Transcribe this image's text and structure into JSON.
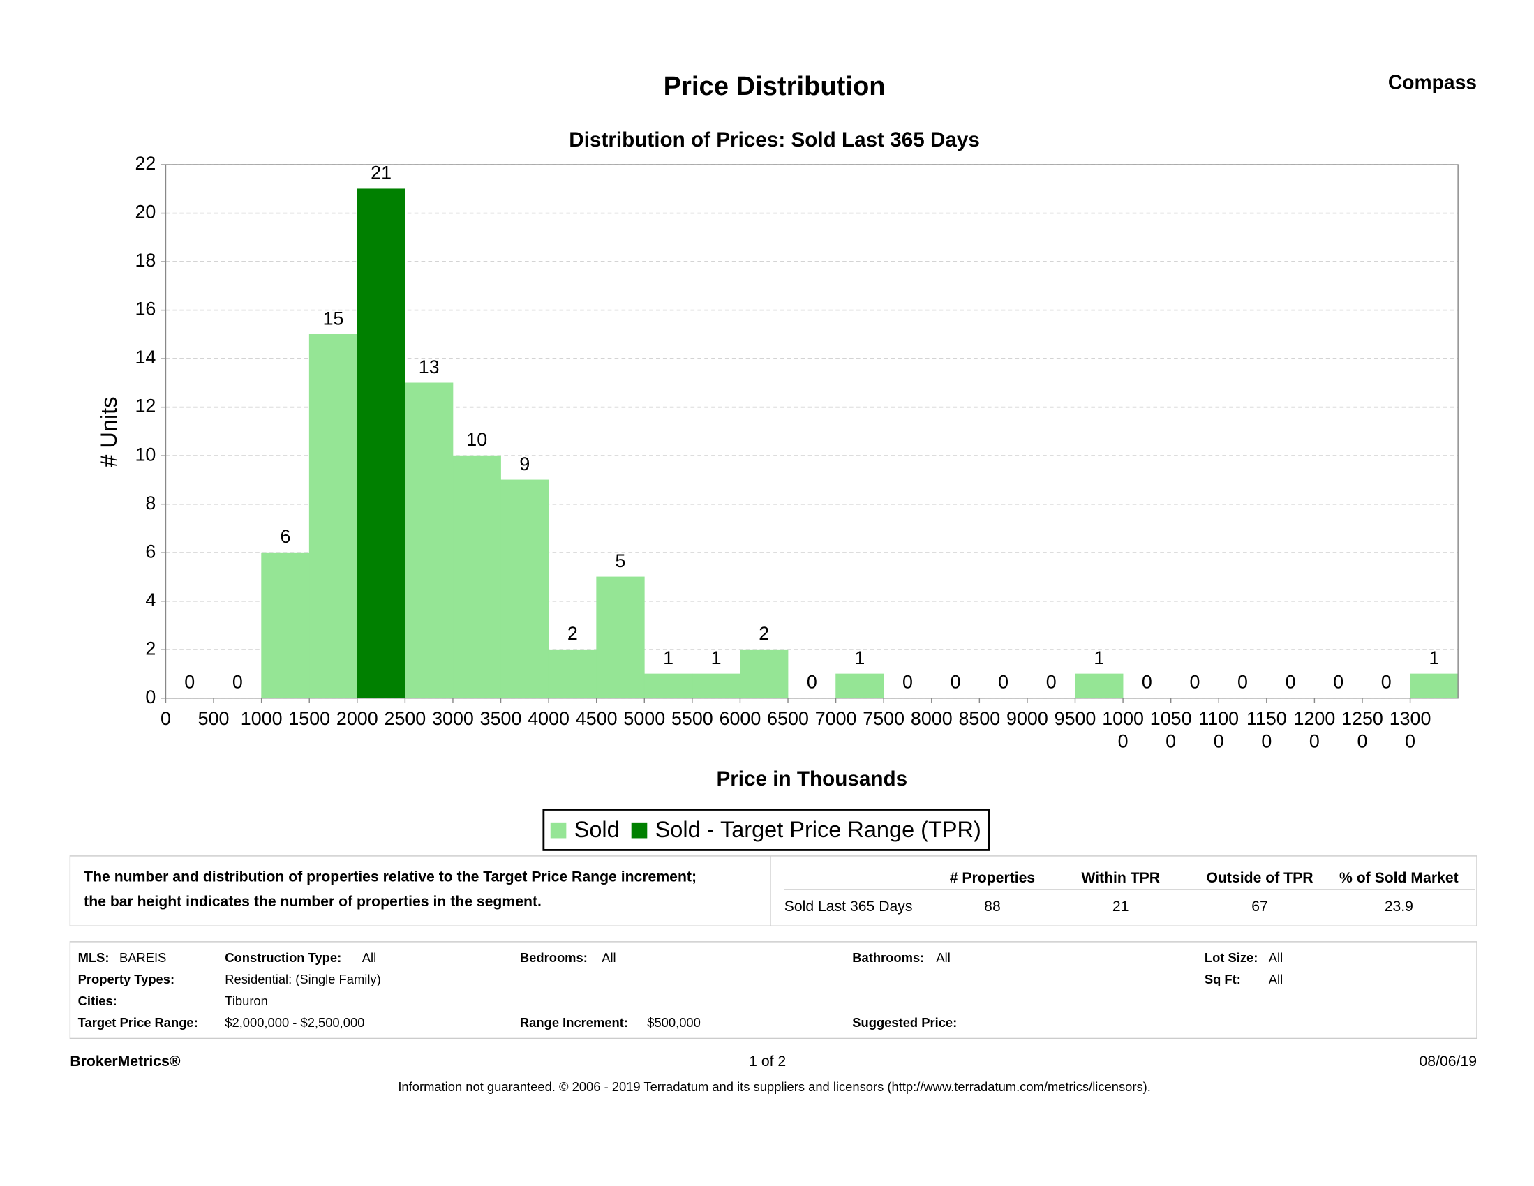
{
  "header": {
    "title": "Price Distribution",
    "brand": "Compass"
  },
  "chart_data": {
    "type": "histogram",
    "title": "Distribution of Prices: Sold Last 365 Days",
    "x_label": "Price in Thousands",
    "y_label": "# Units",
    "bins": [
      0,
      500,
      1000,
      1500,
      2000,
      2500,
      3000,
      3500,
      4000,
      4500,
      5000,
      5500,
      6000,
      6500,
      7000,
      7500,
      8000,
      8500,
      9000,
      9500,
      10000,
      10500,
      11000,
      11500,
      12000,
      12500,
      13000,
      13500
    ],
    "series": [
      {
        "name": "Sold",
        "color": "#95e595",
        "values": [
          0,
          0,
          6,
          15,
          null,
          13,
          10,
          9,
          2,
          5,
          1,
          1,
          2,
          0,
          1,
          0,
          0,
          0,
          0,
          1,
          0,
          0,
          0,
          0,
          0,
          0,
          1
        ]
      },
      {
        "name": "Sold - Target Price Range (TPR)",
        "color": "#008000",
        "values": [
          null,
          null,
          null,
          null,
          21,
          null,
          null,
          null,
          null,
          null,
          null,
          null,
          null,
          null,
          null,
          null,
          null,
          null,
          null,
          null,
          null,
          null,
          null,
          null,
          null,
          null,
          null
        ]
      }
    ],
    "xlim": [
      0,
      13500
    ],
    "xticks": [
      0,
      500,
      1000,
      1500,
      2000,
      2500,
      3000,
      3500,
      4000,
      4500,
      5000,
      5500,
      6000,
      6500,
      7000,
      7500,
      8000,
      8500,
      9000,
      9500,
      10000,
      10500,
      11000,
      11500,
      12000,
      12500,
      13000
    ],
    "ylim": [
      0,
      22
    ],
    "yticks": [
      0,
      2,
      4,
      6,
      8,
      10,
      12,
      14,
      16,
      18,
      20,
      22
    ],
    "grid": true,
    "legend": "bottom"
  },
  "summary": {
    "description": [
      "The number and distribution of properties relative to the Target Price Range increment;",
      "the bar height indicates the number of properties in the segment."
    ],
    "table": {
      "columns": [
        "# Properties",
        "Within TPR",
        "Outside of TPR",
        "% of Sold Market"
      ],
      "rows": [
        [
          "Sold Last 365 Days",
          "88",
          "21",
          "67",
          "23.9"
        ]
      ]
    }
  },
  "criteria": [
    {
      "label": "MLS:",
      "value": "BAREIS"
    },
    {
      "label": "Construction Type:",
      "value": "All"
    },
    {
      "label": "Bedrooms:",
      "value": "All"
    },
    {
      "label": "Bathrooms:",
      "value": "All"
    },
    {
      "label": "Lot Size:",
      "value": "All"
    },
    {
      "label": "Property Types:",
      "value": "Residential: (Single Family)"
    },
    {
      "label": "Sq Ft:",
      "value": "All"
    },
    {
      "label": "Cities:",
      "value": "Tiburon"
    },
    {
      "label": "Target Price Range:",
      "value": "$2,000,000 - $2,500,000"
    },
    {
      "label": "Range Increment:",
      "value": "$500,000"
    },
    {
      "label": "Suggested Price:"
    }
  ],
  "footer": {
    "brand": "BrokerMetrics®",
    "page": "1 of 2",
    "date": "08/06/19",
    "disclaimer": "Information not guaranteed.  © 2006 - 2019 Terradatum and its suppliers and licensors (http://www.terradatum.com/metrics/licensors)."
  }
}
